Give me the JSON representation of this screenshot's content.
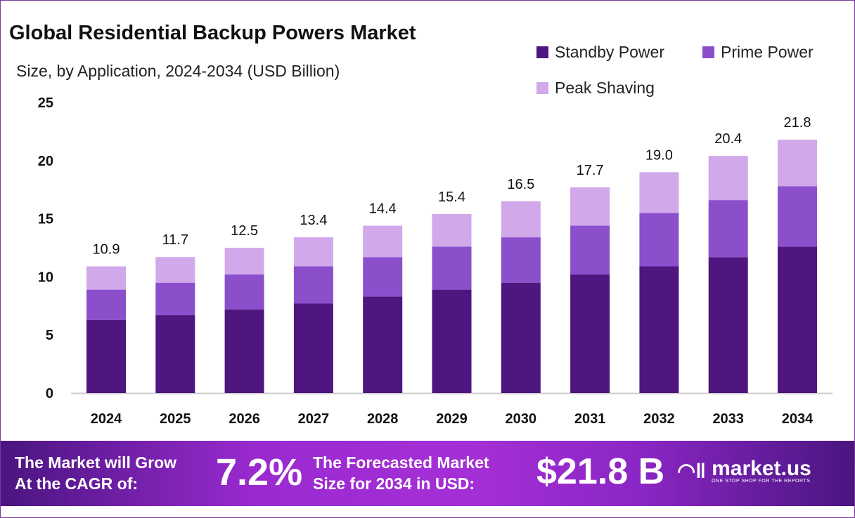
{
  "chart_data": {
    "type": "bar",
    "stacked": true,
    "title": "Global Residential Backup Powers Market",
    "subtitle": "Size, by Application, 2024-2034 (USD Billion)",
    "xlabel": "",
    "ylabel": "",
    "ylim": [
      0,
      25
    ],
    "yticks": [
      0,
      5,
      10,
      15,
      20,
      25
    ],
    "grid": false,
    "legend_position": "top-right",
    "categories": [
      "2024",
      "2025",
      "2026",
      "2027",
      "2028",
      "2029",
      "2030",
      "2031",
      "2032",
      "2033",
      "2034"
    ],
    "series": [
      {
        "name": "Standby Power",
        "color": "#4f1680",
        "values": [
          6.3,
          6.7,
          7.2,
          7.7,
          8.3,
          8.9,
          9.5,
          10.2,
          10.9,
          11.7,
          12.6
        ]
      },
      {
        "name": "Prime Power",
        "color": "#8b4fcc",
        "values": [
          2.6,
          2.8,
          3.0,
          3.2,
          3.4,
          3.7,
          3.9,
          4.2,
          4.6,
          4.9,
          5.2
        ]
      },
      {
        "name": "Peak Shaving",
        "color": "#d1a8ea",
        "values": [
          2.0,
          2.2,
          2.3,
          2.5,
          2.7,
          2.8,
          3.1,
          3.3,
          3.5,
          3.8,
          4.0
        ]
      }
    ],
    "totals": [
      "10.9",
      "11.7",
      "12.5",
      "13.4",
      "14.4",
      "15.4",
      "16.5",
      "17.7",
      "19.0",
      "20.4",
      "21.8"
    ]
  },
  "footer": {
    "cagr_text_1": "The Market will Grow",
    "cagr_text_2": "At the CAGR of:",
    "cagr_value": "7.2%",
    "forecast_text_1": "The Forecasted Market",
    "forecast_text_2": "Size for 2034 in USD:",
    "forecast_value": "$21.8 B",
    "logo_name": "market.us",
    "logo_tagline": "ONE STOP SHOP FOR THE REPORTS"
  }
}
